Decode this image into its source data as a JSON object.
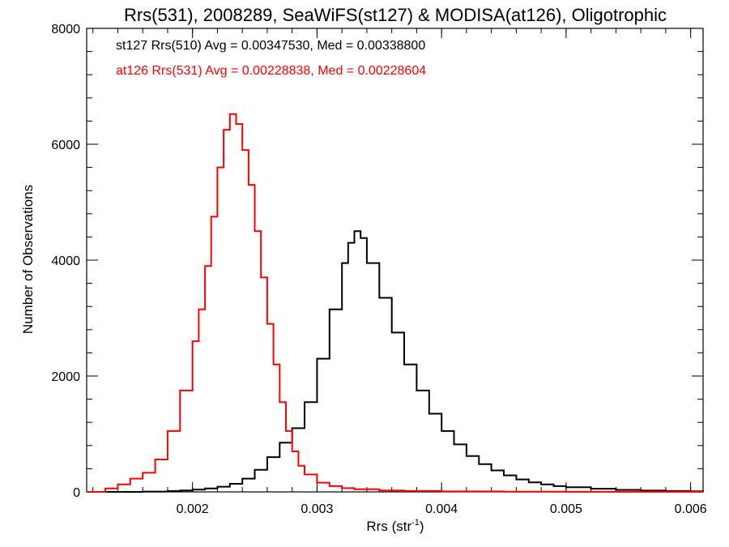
{
  "chart_data": {
    "type": "histogram-step",
    "title": "Rrs(531), 2008289, SeaWiFS(st127) & MODISA(at126), Oligotrophic",
    "xlabel_main": "Rrs (str",
    "xlabel_sup": "-1",
    "xlabel_close": ")",
    "ylabel": "Number of Observations",
    "xlim": [
      0.00115,
      0.0061
    ],
    "ylim": [
      0,
      8000
    ],
    "x_ticks": [
      0.002,
      0.003,
      0.004,
      0.005,
      0.006
    ],
    "x_tick_labels": [
      "0.002",
      "0.003",
      "0.004",
      "0.005",
      "0.006"
    ],
    "y_ticks": [
      0,
      2000,
      4000,
      6000,
      8000
    ],
    "y_tick_labels": [
      "0",
      "2000",
      "4000",
      "6000",
      "8000"
    ],
    "grid": false,
    "legend_position": "top-left inside plot",
    "series": [
      {
        "label": "st127 Rrs(510) Avg = 0.00347530, Med = 0.00338800",
        "color": "#000000",
        "points": [
          [
            0.00115,
            0
          ],
          [
            0.0016,
            5
          ],
          [
            0.0018,
            15
          ],
          [
            0.0019,
            25
          ],
          [
            0.002,
            40
          ],
          [
            0.0021,
            60
          ],
          [
            0.0022,
            90
          ],
          [
            0.0023,
            140
          ],
          [
            0.0024,
            230
          ],
          [
            0.0025,
            380
          ],
          [
            0.0026,
            600
          ],
          [
            0.0027,
            850
          ],
          [
            0.0028,
            1100
          ],
          [
            0.0029,
            1550
          ],
          [
            0.003,
            2300
          ],
          [
            0.0031,
            3150
          ],
          [
            0.0032,
            3950
          ],
          [
            0.00325,
            4300
          ],
          [
            0.0033,
            4500
          ],
          [
            0.00335,
            4380
          ],
          [
            0.0034,
            3950
          ],
          [
            0.0035,
            3350
          ],
          [
            0.0036,
            2750
          ],
          [
            0.0037,
            2200
          ],
          [
            0.0038,
            1750
          ],
          [
            0.0039,
            1350
          ],
          [
            0.004,
            1050
          ],
          [
            0.0041,
            820
          ],
          [
            0.0042,
            620
          ],
          [
            0.0043,
            480
          ],
          [
            0.0044,
            370
          ],
          [
            0.0045,
            285
          ],
          [
            0.0046,
            215
          ],
          [
            0.0047,
            165
          ],
          [
            0.0048,
            130
          ],
          [
            0.0049,
            100
          ],
          [
            0.005,
            80
          ],
          [
            0.0052,
            55
          ],
          [
            0.0054,
            35
          ],
          [
            0.0056,
            22
          ],
          [
            0.0058,
            15
          ],
          [
            0.006,
            10
          ],
          [
            0.0061,
            8
          ]
        ]
      },
      {
        "label": "at126 Rrs(531) Avg = 0.00228838, Med = 0.00228604",
        "color": "#ff0000",
        "points": [
          [
            0.00115,
            0
          ],
          [
            0.0013,
            60
          ],
          [
            0.0014,
            130
          ],
          [
            0.0015,
            230
          ],
          [
            0.0016,
            330
          ],
          [
            0.0017,
            560
          ],
          [
            0.0018,
            1050
          ],
          [
            0.0019,
            1750
          ],
          [
            0.002,
            2600
          ],
          [
            0.00205,
            3150
          ],
          [
            0.0021,
            3900
          ],
          [
            0.00215,
            4750
          ],
          [
            0.0022,
            5600
          ],
          [
            0.00225,
            6250
          ],
          [
            0.0023,
            6520
          ],
          [
            0.00235,
            6350
          ],
          [
            0.0024,
            5900
          ],
          [
            0.00245,
            5300
          ],
          [
            0.0025,
            4500
          ],
          [
            0.00255,
            3700
          ],
          [
            0.0026,
            2900
          ],
          [
            0.00265,
            2200
          ],
          [
            0.0027,
            1550
          ],
          [
            0.00275,
            1050
          ],
          [
            0.0028,
            700
          ],
          [
            0.00285,
            450
          ],
          [
            0.0029,
            300
          ],
          [
            0.003,
            160
          ],
          [
            0.0031,
            100
          ],
          [
            0.0032,
            65
          ],
          [
            0.0033,
            45
          ],
          [
            0.0035,
            25
          ],
          [
            0.0037,
            15
          ],
          [
            0.004,
            8
          ],
          [
            0.0045,
            4
          ],
          [
            0.005,
            2
          ],
          [
            0.0061,
            1
          ]
        ]
      }
    ]
  }
}
